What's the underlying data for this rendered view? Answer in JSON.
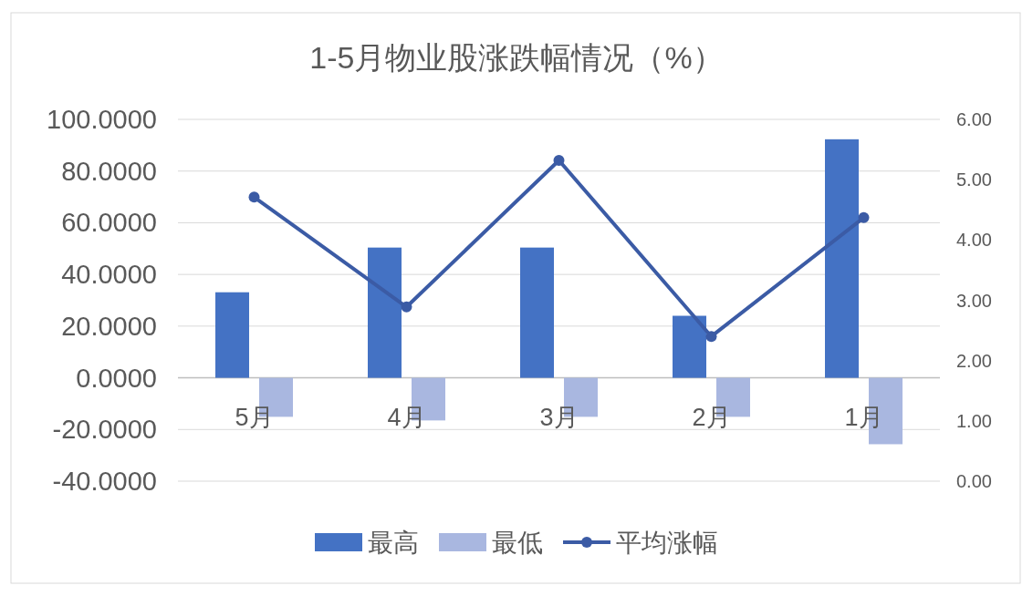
{
  "chart_data": {
    "type": "bar",
    "title": "1-5月物业股涨跌幅情况（%）",
    "categories": [
      "5月",
      "4月",
      "3月",
      "2月",
      "1月"
    ],
    "series": [
      {
        "name": "最高",
        "color": "#4472c4",
        "values": [
          33.1,
          50.4,
          50.4,
          24.0,
          92.3
        ]
      },
      {
        "name": "最低",
        "color": "#a9b7e0",
        "values": [
          -15.1,
          -16.5,
          -15.1,
          -15.1,
          -25.7
        ]
      },
      {
        "name": "平均涨幅",
        "type": "line",
        "axis": "y2",
        "color": "#3b5ba5",
        "values": [
          4.71,
          2.89,
          5.32,
          2.4,
          4.37
        ]
      }
    ],
    "ylim": [
      -40,
      100
    ],
    "yticks": [
      {
        "value": -40,
        "label": "-40.0000"
      },
      {
        "value": -20,
        "label": "-20.0000"
      },
      {
        "value": 0,
        "label": "0.0000"
      },
      {
        "value": 20,
        "label": "20.0000"
      },
      {
        "value": 40,
        "label": "40.0000"
      },
      {
        "value": 60,
        "label": "60.0000"
      },
      {
        "value": 80,
        "label": "80.0000"
      },
      {
        "value": 100,
        "label": "100.0000"
      }
    ],
    "y2lim": [
      0,
      6
    ],
    "y2ticks": [
      {
        "value": 0,
        "label": "0.00"
      },
      {
        "value": 1,
        "label": "1.00"
      },
      {
        "value": 2,
        "label": "2.00"
      },
      {
        "value": 3,
        "label": "3.00"
      },
      {
        "value": 4,
        "label": "4.00"
      },
      {
        "value": 5,
        "label": "5.00"
      },
      {
        "value": 6,
        "label": "6.00"
      }
    ],
    "grid": "y",
    "legend": "bottom",
    "marker": "circle"
  }
}
